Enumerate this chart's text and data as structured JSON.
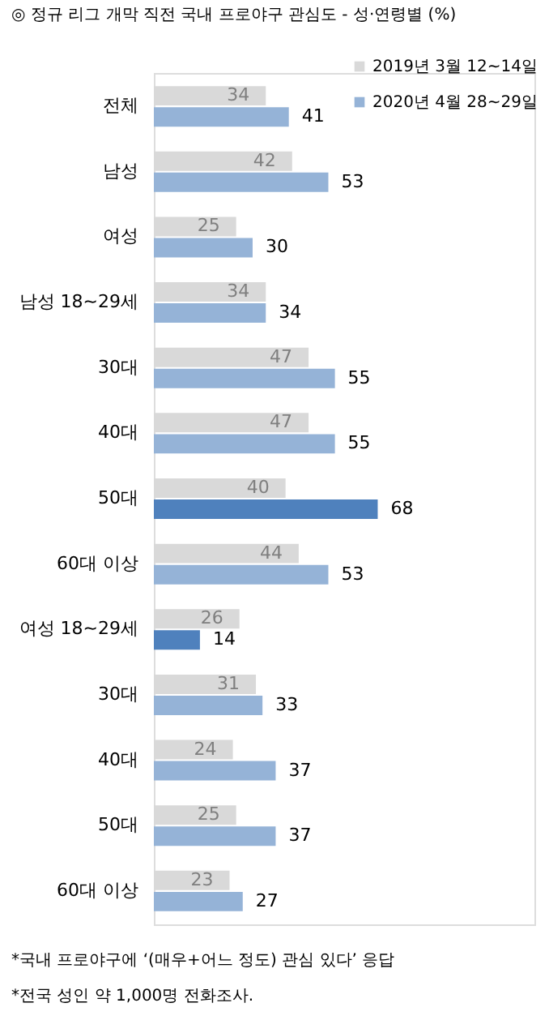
{
  "chart_data": {
    "type": "bar",
    "orientation": "horizontal",
    "title": "◎  정규 리그 개막 직전 국내 프로야구 관심도 - 성·연령별 (%)",
    "categories": [
      "전체",
      "남성",
      "여성",
      "남성 18~29세",
      "30대",
      "40대",
      "50대",
      "60대 이상",
      "여성 18~29세",
      "30대",
      "40대",
      "50대",
      "60대 이상"
    ],
    "series": [
      {
        "name": "2019년 3월 12~14일",
        "color": "#d9d9d9",
        "values": [
          34,
          42,
          25,
          34,
          47,
          47,
          40,
          44,
          26,
          31,
          24,
          25,
          23
        ]
      },
      {
        "name": "2020년 4월 28~29일",
        "color": "#95b3d7",
        "colors": [
          "#95b3d7",
          "#95b3d7",
          "#95b3d7",
          "#95b3d7",
          "#95b3d7",
          "#95b3d7",
          "#4f81bd",
          "#95b3d7",
          "#4f81bd",
          "#95b3d7",
          "#95b3d7",
          "#95b3d7",
          "#95b3d7"
        ],
        "values": [
          41,
          53,
          30,
          34,
          55,
          55,
          68,
          53,
          14,
          33,
          37,
          37,
          27
        ]
      }
    ],
    "data_labels": true,
    "legend": "top right",
    "annotations": [
      "*국내 프로야구에 ‘(매우+어느 정도) 관심 있다’ 응답",
      "*전국 성인 약 1,000명 전화조사."
    ]
  }
}
